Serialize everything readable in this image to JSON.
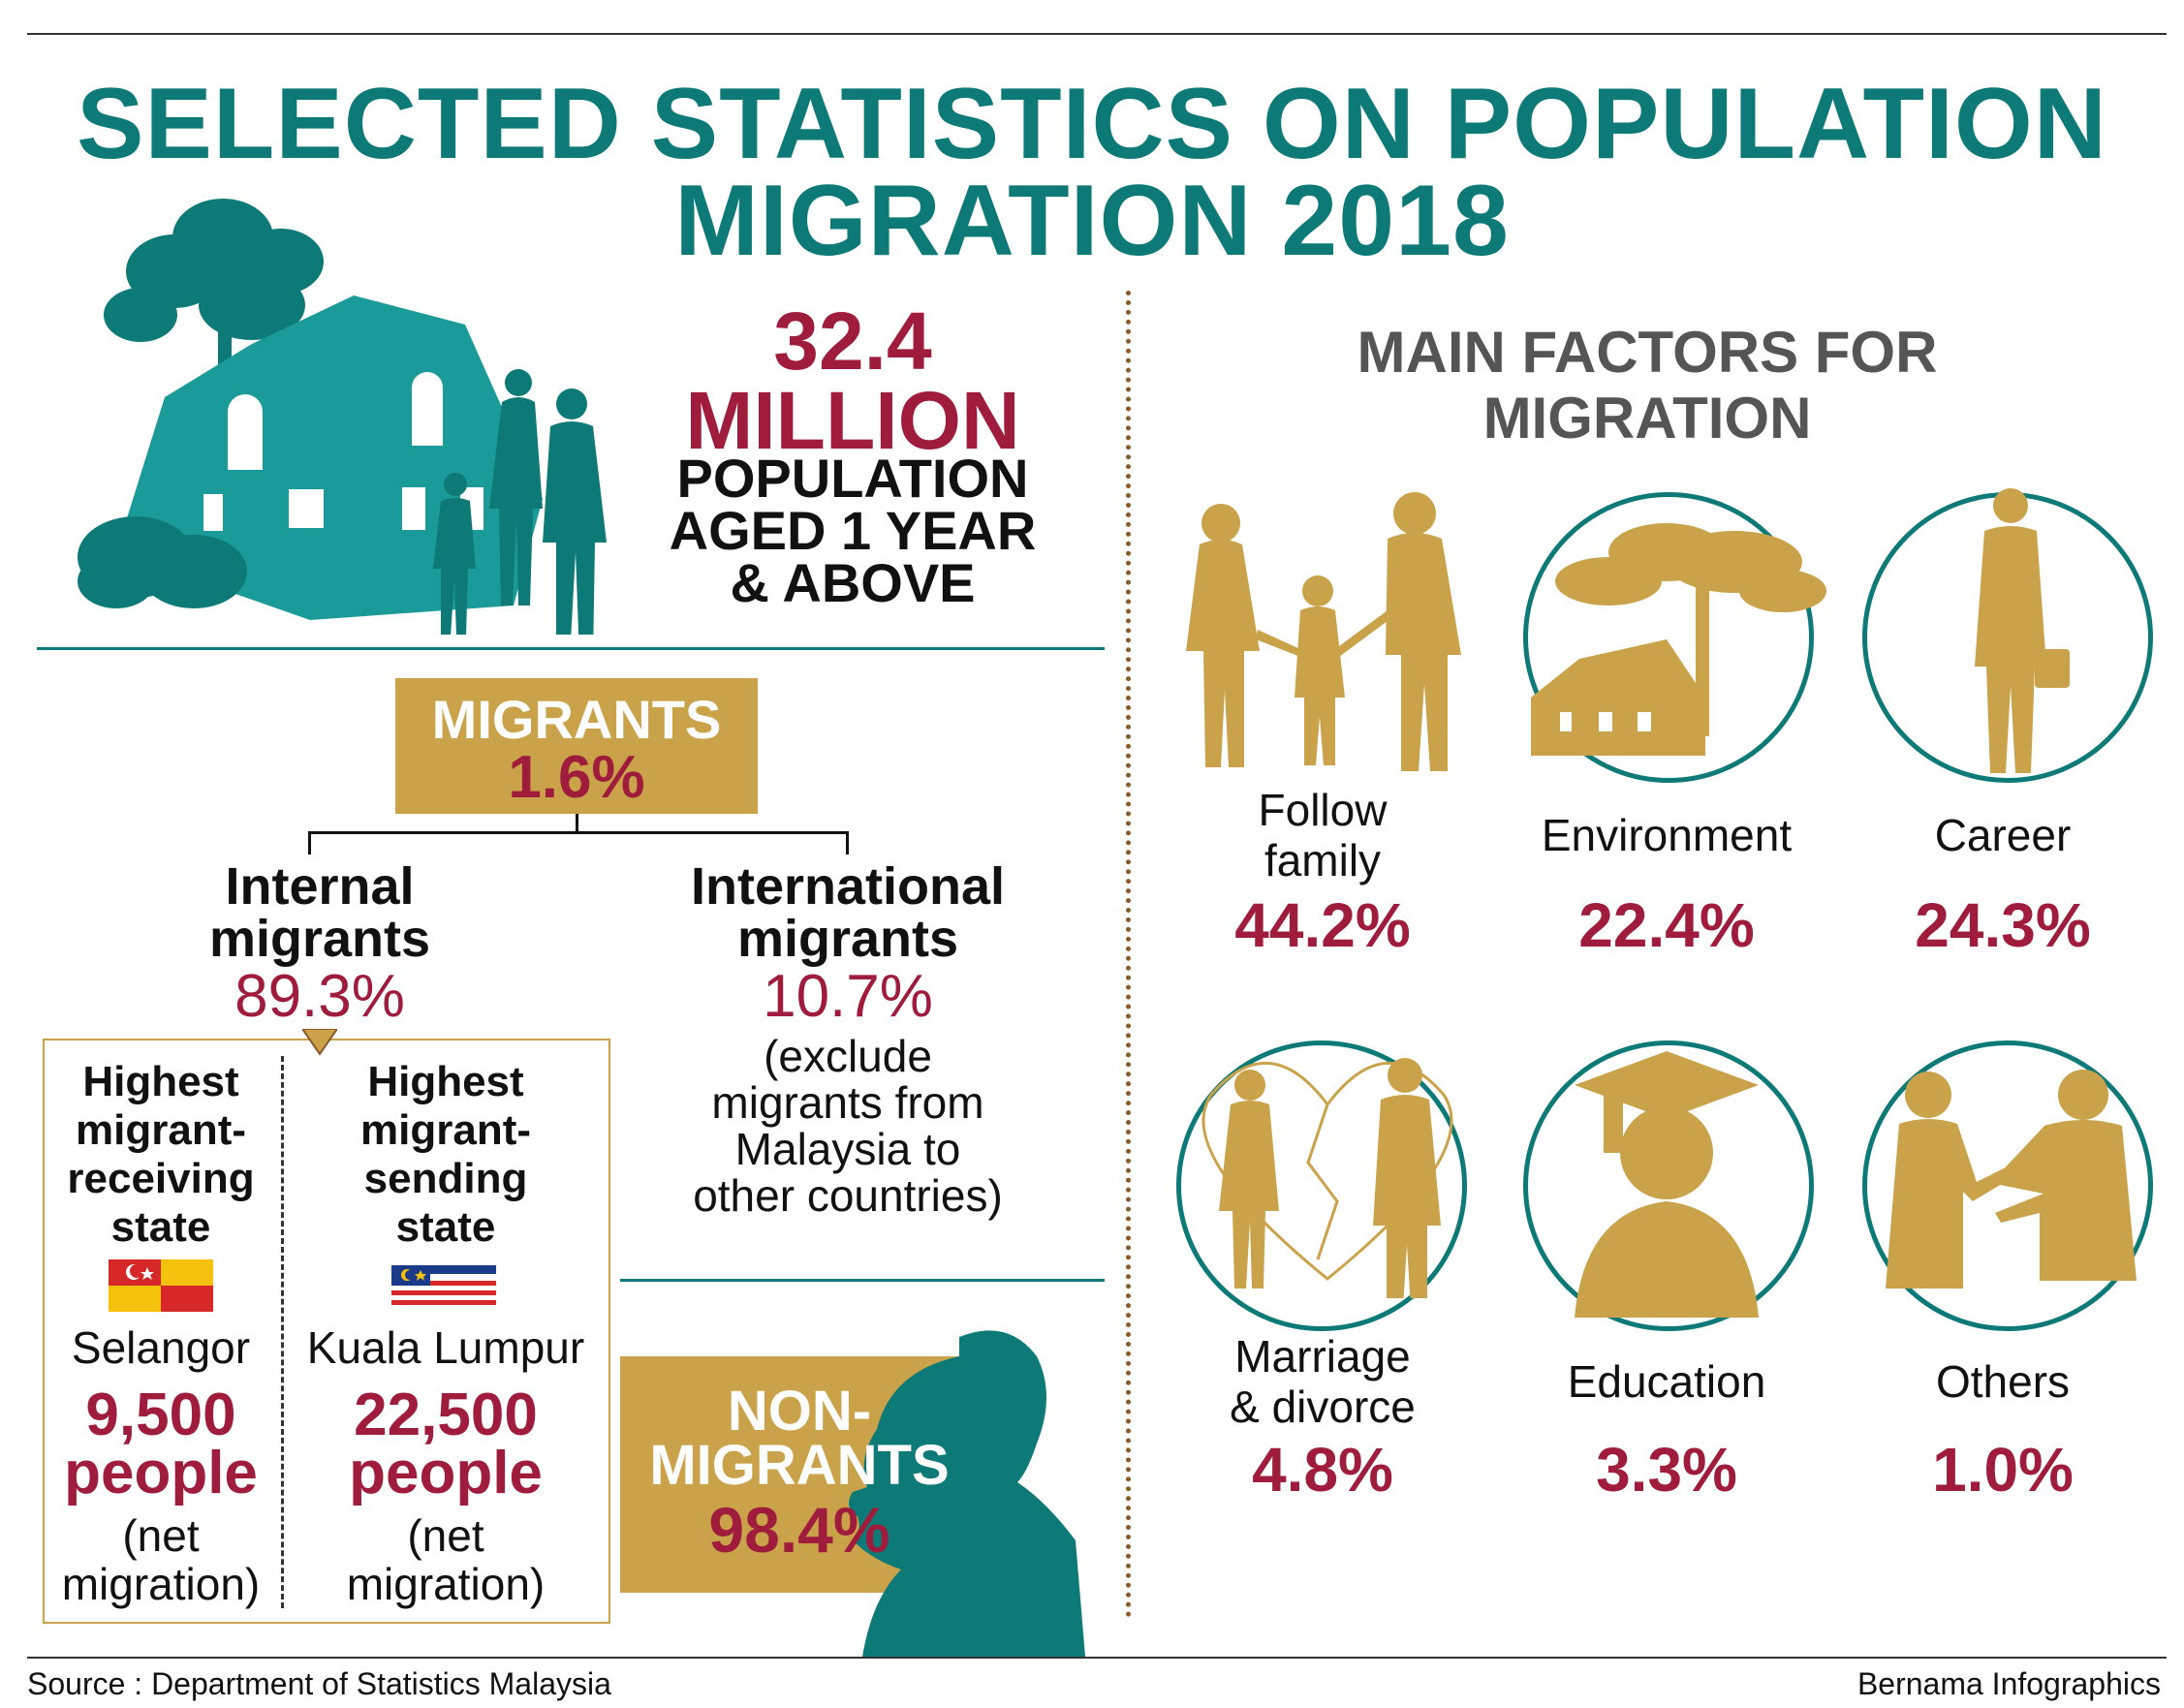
{
  "title": {
    "line1": "SELECTED STATISTICS ON POPULATION",
    "line2": "MIGRATION 2018"
  },
  "population": {
    "value": "32.4",
    "unit": "MILLION",
    "desc_line1": "POPULATION",
    "desc_line2": "AGED 1 YEAR",
    "desc_line3": "& ABOVE"
  },
  "migrants": {
    "label": "MIGRANTS",
    "value": "1.6%"
  },
  "internal": {
    "label_line1": "Internal",
    "label_line2": "migrants",
    "value": "89.3%"
  },
  "international": {
    "label_line1": "International",
    "label_line2": "migrants",
    "value": "10.7%",
    "note_line1": "(exclude",
    "note_line2": "migrants from",
    "note_line3": "Malaysia to",
    "note_line4": "other countries)"
  },
  "receiving": {
    "heading_line1": "Highest",
    "heading_line2": "migrant-",
    "heading_line3": "receiving",
    "heading_line4": "state",
    "state": "Selangor",
    "value": "9,500",
    "unit": "people",
    "note_line1": "(net",
    "note_line2": "migration)"
  },
  "sending": {
    "heading_line1": "Highest",
    "heading_line2": "migrant-",
    "heading_line3": "sending",
    "heading_line4": "state",
    "state": "Kuala Lumpur",
    "value": "22,500",
    "unit": "people",
    "note_line1": "(net",
    "note_line2": "migration)"
  },
  "non_migrants": {
    "label_line1": "NON-",
    "label_line2": "MIGRANTS",
    "value": "98.4%"
  },
  "factors": {
    "heading_line1": "MAIN FACTORS FOR",
    "heading_line2": "MIGRATION",
    "items": [
      {
        "label_line1": "Follow",
        "label_line2": "family",
        "value": "44.2%",
        "icon": "family-icon"
      },
      {
        "label_line1": "Environment",
        "label_line2": "",
        "value": "22.4%",
        "icon": "tree-house-icon"
      },
      {
        "label_line1": "Career",
        "label_line2": "",
        "value": "24.3%",
        "icon": "businessman-icon"
      },
      {
        "label_line1": "Marriage",
        "label_line2": "& divorce",
        "value": "4.8%",
        "icon": "broken-heart-couple-icon"
      },
      {
        "label_line1": "Education",
        "label_line2": "",
        "value": "3.3%",
        "icon": "graduate-icon"
      },
      {
        "label_line1": "Others",
        "label_line2": "",
        "value": "1.0%",
        "icon": "conversation-icon"
      }
    ]
  },
  "footer": {
    "source": "Source : Department of Statistics Malaysia",
    "credit": "Bernama Infographics"
  },
  "colors": {
    "teal": "#0d7a77",
    "red": "#a01c3c",
    "gold": "#c9a24a",
    "house": "#1a9a99"
  }
}
